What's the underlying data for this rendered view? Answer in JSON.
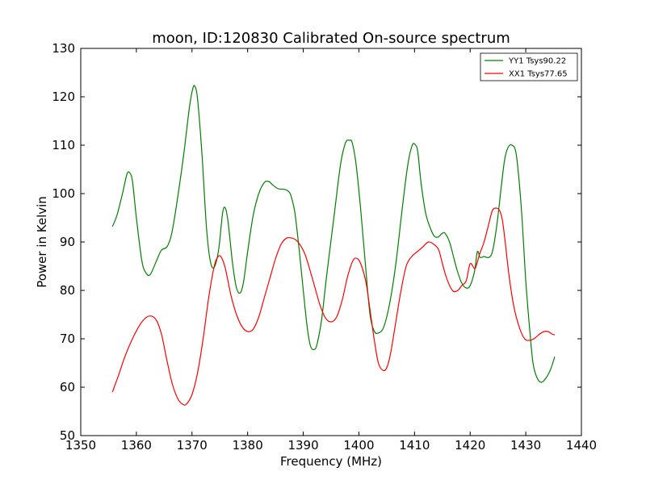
{
  "chart_data": {
    "type": "line",
    "title": "moon, ID:120830 Calibrated On-source spectrum",
    "xlabel": "Frequency (MHz)",
    "ylabel": "Power in Kelvin",
    "xlim": [
      1350,
      1440
    ],
    "ylim": [
      50,
      130
    ],
    "xticks": [
      1350,
      1360,
      1370,
      1380,
      1390,
      1400,
      1410,
      1420,
      1430,
      1440
    ],
    "yticks": [
      50,
      60,
      70,
      80,
      90,
      100,
      110,
      120,
      130
    ],
    "grid": false,
    "legend_position": "top-right",
    "series": [
      {
        "name": "YY1 Tsys90.22",
        "color": "#008000",
        "x": [
          1355.7,
          1356.5,
          1357.5,
          1358.3,
          1358.8,
          1359.3,
          1360.0,
          1361.0,
          1361.8,
          1362.5,
          1363.5,
          1364.5,
          1365.5,
          1366.3,
          1367.2,
          1368.5,
          1369.5,
          1370.1,
          1370.5,
          1371.0,
          1371.8,
          1372.6,
          1373.3,
          1374.0,
          1374.8,
          1375.5,
          1376.0,
          1376.5,
          1377.3,
          1378.0,
          1378.7,
          1379.3,
          1380.0,
          1381.0,
          1382.0,
          1383.0,
          1383.8,
          1384.5,
          1385.5,
          1386.5,
          1387.3,
          1387.8,
          1388.5,
          1389.3,
          1390.0,
          1390.7,
          1391.3,
          1392.0,
          1392.5,
          1393.3,
          1394.2,
          1395.5,
          1396.7,
          1397.6,
          1398.3,
          1398.8,
          1399.5,
          1400.3,
          1401.2,
          1402.0,
          1402.8,
          1403.5,
          1404.3,
          1405.0,
          1405.8,
          1406.7,
          1407.8,
          1408.8,
          1409.6,
          1410.2,
          1410.6,
          1411.2,
          1412.0,
          1412.8,
          1413.5,
          1414.2,
          1415.0,
          1415.5,
          1416.3,
          1417.0,
          1417.7,
          1418.5,
          1419.3,
          1420.0,
          1420.8,
          1421.3,
          1421.8,
          1422.5,
          1423.3,
          1424.0,
          1424.8,
          1425.6,
          1426.2,
          1426.8,
          1427.5,
          1428.3,
          1429.2,
          1430.0,
          1430.7,
          1431.3,
          1432.0,
          1432.8,
          1433.7,
          1434.5,
          1435.2
        ],
        "values": [
          93.2,
          95.5,
          100.0,
          104.0,
          104.3,
          102.5,
          95.0,
          86.0,
          83.5,
          83.3,
          85.8,
          88.3,
          89.0,
          91.5,
          97.5,
          108.0,
          117.5,
          121.5,
          122.2,
          119.5,
          108.0,
          93.0,
          86.0,
          84.8,
          88.5,
          96.0,
          97.0,
          94.0,
          85.5,
          80.5,
          79.5,
          82.0,
          88.0,
          95.5,
          100.0,
          102.3,
          102.5,
          101.8,
          101.0,
          100.9,
          100.5,
          99.5,
          96.0,
          88.0,
          80.0,
          72.5,
          68.5,
          67.8,
          69.0,
          74.0,
          83.0,
          95.0,
          106.0,
          110.5,
          111.0,
          110.5,
          106.0,
          97.0,
          85.0,
          75.0,
          71.5,
          71.2,
          72.0,
          74.5,
          79.0,
          86.0,
          97.0,
          106.0,
          110.0,
          110.0,
          108.5,
          102.0,
          96.0,
          93.0,
          91.3,
          91.0,
          91.8,
          91.8,
          90.0,
          87.0,
          84.0,
          81.5,
          80.5,
          81.0,
          84.0,
          88.0,
          86.8,
          87.0,
          86.8,
          88.0,
          93.5,
          101.5,
          107.0,
          109.5,
          110.0,
          108.0,
          97.0,
          82.0,
          72.0,
          65.0,
          62.0,
          61.0,
          62.0,
          63.8,
          66.3
        ],
        "stroke_width": 1.2
      },
      {
        "name": "XX1 Tsys77.65",
        "color": "#ff0000",
        "x": [
          1355.7,
          1356.8,
          1358.0,
          1359.5,
          1361.0,
          1362.3,
          1363.5,
          1364.5,
          1365.5,
          1366.5,
          1367.5,
          1368.3,
          1369.0,
          1370.0,
          1371.0,
          1372.0,
          1373.0,
          1374.0,
          1374.7,
          1375.3,
          1376.0,
          1377.0,
          1378.0,
          1379.0,
          1380.0,
          1381.0,
          1382.0,
          1383.0,
          1384.0,
          1385.0,
          1386.0,
          1387.0,
          1388.0,
          1388.8,
          1389.5,
          1390.3,
          1391.0,
          1392.0,
          1393.0,
          1394.0,
          1395.0,
          1396.0,
          1397.0,
          1398.0,
          1399.0,
          1399.8,
          1400.5,
          1401.3,
          1402.0,
          1402.8,
          1403.5,
          1404.3,
          1405.0,
          1405.7,
          1406.5,
          1407.5,
          1408.5,
          1409.5,
          1410.5,
          1411.5,
          1412.5,
          1413.5,
          1414.3,
          1414.8,
          1415.5,
          1416.3,
          1417.0,
          1417.8,
          1418.5,
          1419.3,
          1420.0,
          1420.8,
          1421.2,
          1421.7,
          1422.5,
          1423.3,
          1424.0,
          1424.7,
          1425.3,
          1425.8,
          1426.3,
          1427.0,
          1427.8,
          1428.8,
          1429.8,
          1430.8,
          1431.7,
          1432.5,
          1433.3,
          1434.0,
          1434.7,
          1435.2
        ],
        "values": [
          59.0,
          62.5,
          66.5,
          70.5,
          73.5,
          74.7,
          74.0,
          71.0,
          65.5,
          60.5,
          57.5,
          56.5,
          56.5,
          58.5,
          63.0,
          70.0,
          78.5,
          85.0,
          87.0,
          86.8,
          84.5,
          79.0,
          75.0,
          72.5,
          71.5,
          72.0,
          74.5,
          78.5,
          82.5,
          86.5,
          89.5,
          90.8,
          90.8,
          90.3,
          89.3,
          87.5,
          85.0,
          81.0,
          77.0,
          74.3,
          73.5,
          74.5,
          78.0,
          83.0,
          86.3,
          86.5,
          85.0,
          81.5,
          76.0,
          69.5,
          65.0,
          63.5,
          64.0,
          67.0,
          72.5,
          79.5,
          85.0,
          87.0,
          88.0,
          89.0,
          90.0,
          89.5,
          88.5,
          86.5,
          83.5,
          81.0,
          79.8,
          80.0,
          81.0,
          82.0,
          85.5,
          84.5,
          85.5,
          87.5,
          90.0,
          93.5,
          96.5,
          97.0,
          96.5,
          94.5,
          90.0,
          83.0,
          77.0,
          72.5,
          70.0,
          69.7,
          70.2,
          71.0,
          71.5,
          71.5,
          71.0,
          70.8
        ],
        "stroke_width": 1.2
      }
    ]
  }
}
